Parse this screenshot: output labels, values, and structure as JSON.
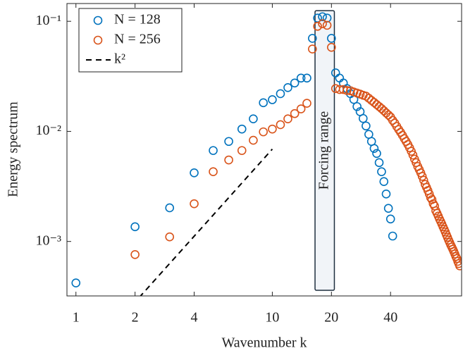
{
  "chart_data": {
    "type": "scatter",
    "xlabel": "Wavenumber k",
    "ylabel": "Energy spectrum",
    "xscale": "log",
    "yscale": "log",
    "xlim": [
      0.9,
      92
    ],
    "ylim": [
      0.00032,
      0.145
    ],
    "xticks": [
      1,
      2,
      4,
      10,
      20,
      40
    ],
    "yticks": [
      {
        "value": 0.001,
        "label": "10⁻³"
      },
      {
        "value": 0.01,
        "label": "10⁻²"
      },
      {
        "value": 0.1,
        "label": "10⁻¹"
      }
    ],
    "legend": "upper left",
    "series": [
      {
        "name": "N = 128",
        "color": "#0072BD",
        "marker": "circle",
        "x": [
          1,
          2,
          3,
          4,
          5,
          6,
          7,
          8,
          9,
          10,
          11,
          12,
          13,
          14,
          15,
          16,
          17,
          18,
          19,
          20,
          21,
          22,
          23,
          24,
          25,
          26,
          27,
          28,
          29,
          30,
          31,
          32,
          33,
          34,
          35,
          36,
          37,
          38,
          39,
          40,
          41
        ],
        "values": [
          0.00042,
          0.00136,
          0.00202,
          0.0042,
          0.0067,
          0.0081,
          0.0105,
          0.013,
          0.0182,
          0.0194,
          0.022,
          0.025,
          0.0275,
          0.0305,
          0.0305,
          0.07,
          0.107,
          0.11,
          0.107,
          0.07,
          0.034,
          0.0305,
          0.0275,
          0.0245,
          0.022,
          0.0195,
          0.0168,
          0.0151,
          0.0131,
          0.0112,
          0.0094,
          0.0081,
          0.007,
          0.0063,
          0.0052,
          0.0043,
          0.0035,
          0.0027,
          0.002,
          0.0016,
          0.00112
        ]
      },
      {
        "name": "N = 256",
        "color": "#D95319",
        "marker": "circle",
        "x": [
          2,
          3,
          4,
          5,
          6,
          7,
          8,
          9,
          10,
          11,
          12,
          13,
          14,
          15,
          16,
          17,
          18,
          19,
          20,
          21,
          22,
          23,
          24,
          25,
          26,
          27,
          28,
          29,
          30,
          31,
          32,
          33,
          34,
          35,
          36,
          37,
          38,
          39,
          40,
          41,
          42,
          43,
          44,
          45,
          46,
          47,
          48,
          49,
          50,
          51,
          52,
          53,
          54,
          55,
          56,
          57,
          58,
          59,
          60,
          61,
          62,
          63,
          64,
          65,
          66,
          67,
          68,
          69,
          70,
          71,
          72,
          73,
          74,
          75,
          76,
          77,
          78,
          79,
          80,
          81,
          82,
          83,
          84,
          85,
          86,
          87,
          88,
          89,
          90
        ],
        "values": [
          0.00076,
          0.0011,
          0.0022,
          0.0043,
          0.0055,
          0.0067,
          0.0083,
          0.0099,
          0.0105,
          0.0115,
          0.013,
          0.0145,
          0.016,
          0.018,
          0.056,
          0.09,
          0.095,
          0.092,
          0.058,
          0.0245,
          0.024,
          0.024,
          0.0235,
          0.0234,
          0.0228,
          0.0223,
          0.0218,
          0.0213,
          0.0209,
          0.02,
          0.0191,
          0.0183,
          0.0175,
          0.0168,
          0.0161,
          0.0154,
          0.0147,
          0.0141,
          0.0135,
          0.0126,
          0.0119,
          0.0111,
          0.0104,
          0.0098,
          0.0092,
          0.0086,
          0.0081,
          0.0076,
          0.0071,
          0.0066,
          0.0061,
          0.0056,
          0.0052,
          0.0048,
          0.0045,
          0.0042,
          0.0039,
          0.0036,
          0.0033,
          0.0031,
          0.0029,
          0.0027,
          0.0025,
          0.0024,
          0.0022,
          0.0021,
          0.0019,
          0.0018,
          0.0017,
          0.0016,
          0.00152,
          0.00144,
          0.00136,
          0.00129,
          0.00122,
          0.00115,
          0.00109,
          0.00103,
          0.00098,
          0.00093,
          0.00089,
          0.00085,
          0.00081,
          0.00077,
          0.00073,
          0.0007,
          0.00066,
          0.00063,
          0.0006
        ]
      },
      {
        "name": "k²",
        "color": "#000000",
        "marker": "none",
        "dash": true,
        "x": [
          2.1,
          10
        ],
        "values": [
          0.00031,
          0.0069
        ]
      }
    ],
    "annotation": {
      "text": "Forcing range",
      "x": [
        16.5,
        20.7
      ],
      "y": [
        0.00036,
        0.125
      ],
      "fill": "#f1f4f8"
    }
  }
}
